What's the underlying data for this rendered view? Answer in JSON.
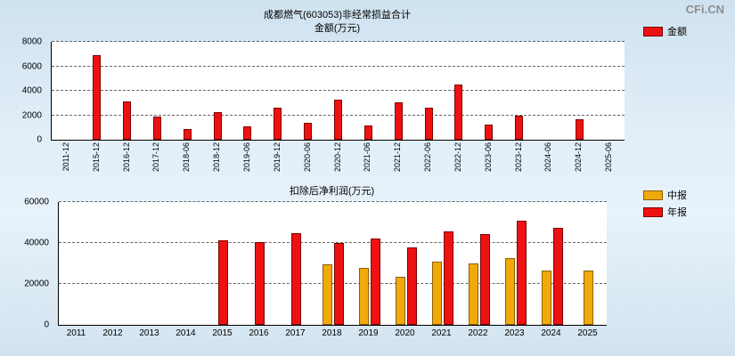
{
  "logo": {
    "text": "CFi.CN"
  },
  "chart_data": [
    {
      "type": "bar",
      "title": "成都燃气(603053)非经常损益合计",
      "subtitle": "金额(万元)",
      "categories": [
        "2011-12",
        "2015-12",
        "2016-12",
        "2017-12",
        "2018-06",
        "2018-12",
        "2019-06",
        "2019-12",
        "2020-06",
        "2020-12",
        "2021-06",
        "2021-12",
        "2022-06",
        "2022-12",
        "2023-06",
        "2023-12",
        "2024-06",
        "2024-12",
        "2025-06"
      ],
      "series": [
        {
          "name": "金额",
          "color": "#ee1111",
          "border": "#7d0000",
          "values": [
            null,
            6900,
            3100,
            1900,
            900,
            2250,
            1100,
            2600,
            1400,
            3300,
            1200,
            3050,
            2600,
            4500,
            1250,
            2000,
            null,
            1650,
            null
          ]
        }
      ],
      "ylim": [
        0,
        8000
      ],
      "yticks": [
        0,
        2000,
        4000,
        6000,
        8000
      ],
      "grid": "dashed-horizontal",
      "legend_position": "right"
    },
    {
      "type": "bar",
      "title": "扣除后净利润(万元)",
      "categories": [
        "2011",
        "2012",
        "2013",
        "2014",
        "2015",
        "2016",
        "2017",
        "2018",
        "2019",
        "2020",
        "2021",
        "2022",
        "2023",
        "2024",
        "2025"
      ],
      "series": [
        {
          "name": "中报",
          "color": "#f2a90a",
          "border": "#8a6000",
          "values": [
            null,
            null,
            null,
            null,
            null,
            null,
            null,
            29500,
            27800,
            23500,
            31000,
            30000,
            32500,
            26500,
            26500
          ]
        },
        {
          "name": "年报",
          "color": "#ee1111",
          "border": "#7d0000",
          "values": [
            null,
            null,
            null,
            null,
            41500,
            40500,
            44800,
            40200,
            42300,
            37800,
            45800,
            44500,
            51000,
            47200,
            null
          ]
        }
      ],
      "ylim": [
        0,
        60000
      ],
      "yticks": [
        0,
        20000,
        40000,
        60000
      ],
      "grid": "dashed-horizontal",
      "legend_position": "right"
    }
  ]
}
